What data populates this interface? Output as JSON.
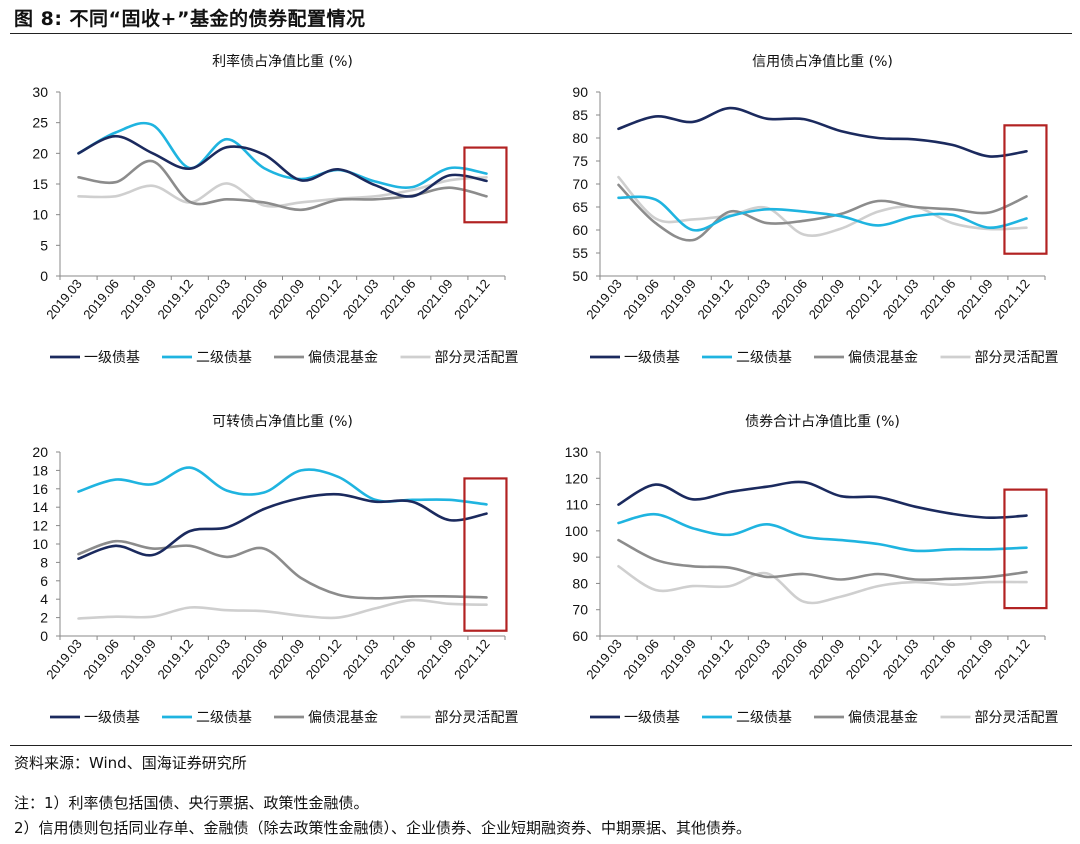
{
  "figure": {
    "title": "图 8:  不同“固收+”基金的债券配置情况",
    "source": "资料来源：Wind、国海证券研究所",
    "note1": "注：1）利率债包括国债、央行票据、政策性金融债。",
    "note2": "2）信用债则包括同业存单、金融债（除去政策性金融债）、企业债券、企业短期融资券、中期票据、其他债券。"
  },
  "colors": {
    "一级债基": "#1b2a5e",
    "二级债基": "#1fb4e0",
    "偏债混基金": "#8c8c8c",
    "部分灵活配置": "#cfcfcf",
    "highlight_box": "#b22222"
  },
  "chart_data": [
    {
      "type": "line",
      "title": "利率债占净值比重 (%)",
      "x": [
        "2019.03",
        "2019.06",
        "2019.09",
        "2019.12",
        "2020.03",
        "2020.06",
        "2020.09",
        "2020.12",
        "2021.03",
        "2021.06",
        "2021.09",
        "2021.12"
      ],
      "ylim": [
        0,
        30
      ],
      "yticks": [
        0,
        5,
        10,
        15,
        20,
        25,
        30
      ],
      "series": [
        {
          "name": "一级债基",
          "values": [
            20,
            22.8,
            20,
            17.5,
            21,
            19.8,
            15.6,
            17.4,
            14.8,
            13,
            16.4,
            15.5
          ]
        },
        {
          "name": "二级债基",
          "values": [
            20,
            23.4,
            24.6,
            17.6,
            22.3,
            17.6,
            15.8,
            17.3,
            15.4,
            14.5,
            17.6,
            16.7
          ]
        },
        {
          "name": "偏债混基金",
          "values": [
            16.1,
            15.3,
            18.7,
            12.1,
            12.5,
            12,
            10.8,
            12.4,
            12.5,
            13.1,
            14.4,
            13
          ]
        },
        {
          "name": "部分灵活配置",
          "values": [
            13,
            13,
            14.7,
            12,
            15.1,
            11.5,
            12,
            12.6,
            13,
            14,
            15.6,
            16.1
          ]
        }
      ],
      "highlight": "2021.12"
    },
    {
      "type": "line",
      "title": "信用债占净值比重 (%)",
      "x": [
        "2019.03",
        "2019.06",
        "2019.09",
        "2019.12",
        "2020.03",
        "2020.06",
        "2020.09",
        "2020.12",
        "2021.03",
        "2021.06",
        "2021.09",
        "2021.12"
      ],
      "ylim": [
        50,
        90
      ],
      "yticks": [
        50,
        55,
        60,
        65,
        70,
        75,
        80,
        85,
        90
      ],
      "series": [
        {
          "name": "一级债基",
          "values": [
            82,
            84.7,
            83.5,
            86.5,
            84.2,
            84.1,
            81.5,
            80,
            79.7,
            78.5,
            76,
            77.1
          ]
        },
        {
          "name": "二级债基",
          "values": [
            67,
            66.6,
            60,
            63,
            64.5,
            64,
            63,
            61,
            63,
            63.3,
            60.5,
            62.5
          ]
        },
        {
          "name": "偏债混基金",
          "values": [
            69.8,
            61.5,
            57.8,
            64,
            61.5,
            62,
            63.5,
            66.3,
            65,
            64.5,
            63.8,
            67.3
          ]
        },
        {
          "name": "部分灵活配置",
          "values": [
            71.5,
            62.5,
            62.3,
            63.2,
            64.8,
            59,
            60.3,
            64,
            65,
            61.5,
            60.2,
            60.5
          ]
        }
      ],
      "highlight": "2021.12"
    },
    {
      "type": "line",
      "title": "可转债占净值比重 (%)",
      "x": [
        "2019.03",
        "2019.06",
        "2019.09",
        "2019.12",
        "2020.03",
        "2020.06",
        "2020.09",
        "2020.12",
        "2021.03",
        "2021.06",
        "2021.09",
        "2021.12"
      ],
      "ylim": [
        0,
        20
      ],
      "yticks": [
        0,
        2,
        4,
        6,
        8,
        10,
        12,
        14,
        16,
        18,
        20
      ],
      "series": [
        {
          "name": "一级债基",
          "values": [
            8.4,
            9.8,
            8.8,
            11.4,
            11.8,
            13.8,
            15,
            15.4,
            14.6,
            14.6,
            12.6,
            13.3
          ]
        },
        {
          "name": "二级债基",
          "values": [
            15.7,
            17,
            16.5,
            18.3,
            15.8,
            15.6,
            18,
            17.3,
            14.8,
            14.8,
            14.8,
            14.3
          ]
        },
        {
          "name": "偏债混基金",
          "values": [
            8.9,
            10.3,
            9.5,
            9.8,
            8.6,
            9.5,
            6.3,
            4.5,
            4.1,
            4.3,
            4.3,
            4.2
          ]
        },
        {
          "name": "部分灵活配置",
          "values": [
            1.9,
            2.1,
            2.1,
            3.1,
            2.8,
            2.7,
            2.2,
            2,
            3,
            3.9,
            3.5,
            3.4
          ]
        }
      ],
      "highlight": "2021.12"
    },
    {
      "type": "line",
      "title": "债券合计占净值比重 (%)",
      "x": [
        "2019.03",
        "2019.06",
        "2019.09",
        "2019.12",
        "2020.03",
        "2020.06",
        "2020.09",
        "2020.12",
        "2021.03",
        "2021.06",
        "2021.09",
        "2021.12"
      ],
      "ylim": [
        60,
        130
      ],
      "yticks": [
        60,
        70,
        80,
        90,
        100,
        110,
        120,
        130
      ],
      "series": [
        {
          "name": "一级债基",
          "values": [
            110,
            117.6,
            112,
            114.8,
            116.8,
            118.5,
            113.2,
            112.8,
            109.2,
            106.5,
            105,
            105.8
          ]
        },
        {
          "name": "二级债基",
          "values": [
            103,
            106.3,
            101,
            98.5,
            102.5,
            97.8,
            96.5,
            95,
            92.4,
            93,
            93,
            93.6
          ]
        },
        {
          "name": "偏债混基金",
          "values": [
            96.5,
            89,
            86.5,
            86,
            82.5,
            83.6,
            81.5,
            83.6,
            81.5,
            81.8,
            82.5,
            84.3
          ]
        },
        {
          "name": "部分灵活配置",
          "values": [
            86.5,
            77.5,
            79,
            79,
            83.8,
            73,
            75,
            79,
            80.5,
            79.5,
            80.5,
            80.5
          ]
        }
      ],
      "highlight": "2021.12"
    }
  ]
}
